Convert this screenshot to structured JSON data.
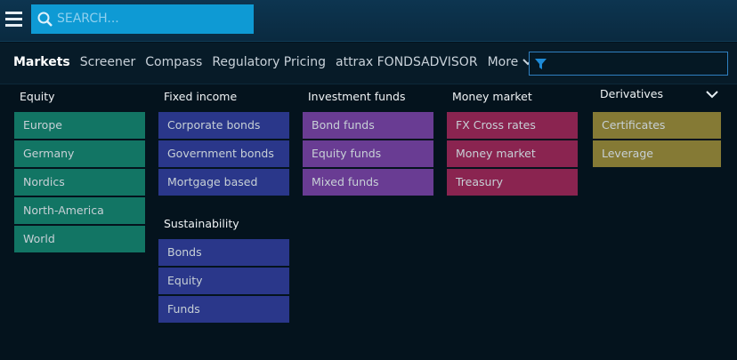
{
  "search": {
    "placeholder": "SEARCH..."
  },
  "nav": {
    "items": [
      "Markets",
      "Screener",
      "Compass",
      "Regulatory Pricing",
      "attrax FONDSADVISOR"
    ],
    "more": "More"
  },
  "groups": [
    {
      "title": "Equity",
      "items": [
        "Europe",
        "Germany",
        "Nordics",
        "North-America",
        "World"
      ]
    },
    {
      "title": "Fixed income",
      "items": [
        "Corporate bonds",
        "Government bonds",
        "Mortgage based"
      ]
    },
    {
      "title": "Sustainability",
      "items": [
        "Bonds",
        "Equity",
        "Funds"
      ]
    },
    {
      "title": "Investment funds",
      "items": [
        "Bond funds",
        "Equity funds",
        "Mixed funds"
      ]
    },
    {
      "title": "Money market",
      "items": [
        "FX Cross rates",
        "Money market",
        "Treasury"
      ]
    },
    {
      "title": "Derivatives",
      "items": [
        "Certificates",
        "Leverage"
      ]
    }
  ]
}
